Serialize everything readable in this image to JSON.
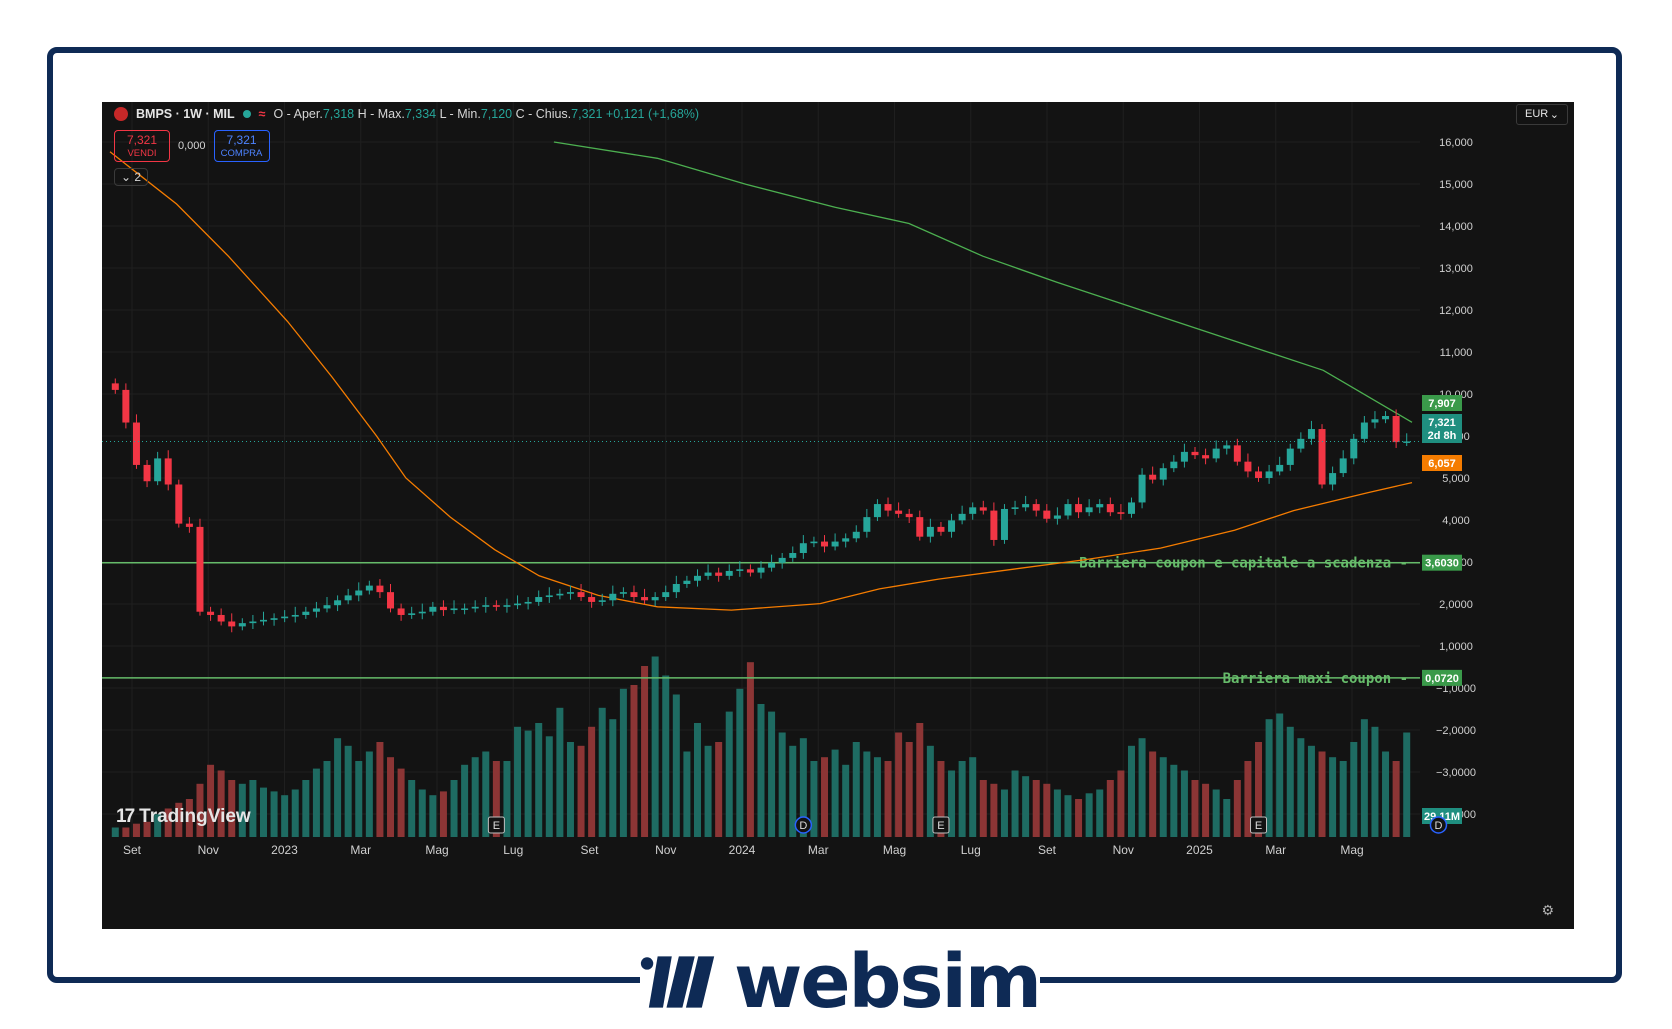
{
  "header": {
    "symbol": "BMPS · 1W · MIL",
    "o_label": "O - Aper.",
    "o_val": "7,318",
    "h_label": "H - Max.",
    "h_val": "7,334",
    "l_label": "L - Min.",
    "l_val": "7,120",
    "c_label": "C - Chius.",
    "c_val": "7,321",
    "change": "+0,121 (+1,68%)"
  },
  "trade": {
    "sell_price": "7,321",
    "sell_label": "VENDI",
    "spread": "0,000",
    "buy_price": "7,321",
    "buy_label": "COMPRA"
  },
  "indicators_toggle": "2",
  "currency": "EUR",
  "logo_text": "TradingView",
  "brand_text": "websim",
  "colors": {
    "up": "#26a69a",
    "down": "#f23645",
    "ma_slow": "#4caf50",
    "ma_fast": "#f57c00",
    "barrier": "#66bb6a",
    "frame": "#0e2a55"
  },
  "chart_data": {
    "type": "candlestick",
    "interval": "1W",
    "x_tick_labels": [
      "Set",
      "Nov",
      "2023",
      "Mar",
      "Mag",
      "Lug",
      "Set",
      "Nov",
      "2024",
      "Mar",
      "Mag",
      "Lug",
      "Set",
      "Nov",
      "2025",
      "Mar",
      "Mag"
    ],
    "y_tick_labels": [
      "16,000",
      "15,000",
      "14,000",
      "13,000",
      "12,000",
      "11,000",
      "10,000",
      "9,000",
      "5,000",
      "4,000",
      "3,0000",
      "2,0000",
      "1,0000",
      "−1,0000",
      "−2,0000",
      "−3,0000",
      "−4,0000"
    ],
    "ylim": [
      -4.5,
      16.5
    ],
    "price_labels": {
      "ma_slow": "7,907",
      "last": "7,321",
      "countdown": "2d 8h",
      "ma_fast": "6,057",
      "volume": "29,11M"
    },
    "hlines": [
      {
        "label": "Barriera coupon e capitale a scadenza",
        "value": 3.603,
        "value_label": "3,6030"
      },
      {
        "label": "Barriera maxi coupon",
        "value": 0.072,
        "value_label": "0,0720"
      }
    ],
    "event_markers": [
      {
        "type": "E",
        "x_index": 36
      },
      {
        "type": "D",
        "x_index": 65
      },
      {
        "type": "E",
        "x_index": 78
      },
      {
        "type": "E",
        "x_index": 108
      },
      {
        "type": "D",
        "x_index": 125
      }
    ],
    "close": [
      8.9,
      7.9,
      6.6,
      6.1,
      6.8,
      6.0,
      4.8,
      4.7,
      2.1,
      2.0,
      1.8,
      1.65,
      1.75,
      1.8,
      1.85,
      1.9,
      1.95,
      2.0,
      2.1,
      2.2,
      2.3,
      2.45,
      2.6,
      2.75,
      2.9,
      2.7,
      2.2,
      2.0,
      2.05,
      2.1,
      2.25,
      2.15,
      2.2,
      2.2,
      2.25,
      2.3,
      2.25,
      2.3,
      2.35,
      2.4,
      2.55,
      2.6,
      2.65,
      2.7,
      2.55,
      2.4,
      2.45,
      2.65,
      2.7,
      2.55,
      2.45,
      2.55,
      2.7,
      2.95,
      3.05,
      3.2,
      3.3,
      3.2,
      3.35,
      3.4,
      3.3,
      3.45,
      3.6,
      3.75,
      3.9,
      4.2,
      4.25,
      4.1,
      4.25,
      4.35,
      4.55,
      5.0,
      5.4,
      5.2,
      5.1,
      5.0,
      4.4,
      4.7,
      4.55,
      4.9,
      5.1,
      5.3,
      5.2,
      4.3,
      5.25,
      5.3,
      5.4,
      5.2,
      4.95,
      5.05,
      5.4,
      5.15,
      5.3,
      5.4,
      5.15,
      5.1,
      5.45,
      6.3,
      6.15,
      6.5,
      6.7,
      7.0,
      6.9,
      6.8,
      7.1,
      7.2,
      6.7,
      6.4,
      6.2,
      6.4,
      6.6,
      7.1,
      7.4,
      7.7,
      6.0,
      6.35,
      6.8,
      7.4,
      7.9,
      8.0,
      8.1,
      7.3,
      7.32
    ],
    "volume_rel": [
      0.05,
      0.05,
      0.07,
      0.08,
      0.12,
      0.15,
      0.18,
      0.2,
      0.28,
      0.38,
      0.35,
      0.3,
      0.28,
      0.3,
      0.26,
      0.24,
      0.22,
      0.25,
      0.3,
      0.36,
      0.4,
      0.52,
      0.48,
      0.4,
      0.45,
      0.5,
      0.42,
      0.36,
      0.3,
      0.25,
      0.22,
      0.24,
      0.3,
      0.38,
      0.42,
      0.45,
      0.4,
      0.4,
      0.58,
      0.56,
      0.6,
      0.53,
      0.68,
      0.5,
      0.48,
      0.58,
      0.68,
      0.62,
      0.78,
      0.8,
      0.9,
      0.95,
      0.85,
      0.75,
      0.45,
      0.6,
      0.48,
      0.5,
      0.66,
      0.78,
      0.92,
      0.7,
      0.66,
      0.55,
      0.48,
      0.52,
      0.4,
      0.42,
      0.46,
      0.38,
      0.5,
      0.45,
      0.42,
      0.4,
      0.55,
      0.5,
      0.6,
      0.48,
      0.4,
      0.35,
      0.4,
      0.42,
      0.3,
      0.28,
      0.25,
      0.35,
      0.32,
      0.3,
      0.28,
      0.25,
      0.22,
      0.2,
      0.23,
      0.25,
      0.3,
      0.35,
      0.48,
      0.52,
      0.45,
      0.42,
      0.38,
      0.35,
      0.3,
      0.28,
      0.25,
      0.2,
      0.3,
      0.4,
      0.5,
      0.62,
      0.65,
      0.58,
      0.52,
      0.48,
      0.45,
      0.42,
      0.4,
      0.5,
      0.62,
      0.58,
      0.45,
      0.4,
      0.55
    ],
    "ma_fast": [
      {
        "x": 0,
        "y": 16.2
      },
      {
        "x": 9,
        "y": 14.6
      },
      {
        "x": 16,
        "y": 13.0
      },
      {
        "x": 24,
        "y": 11.0
      },
      {
        "x": 30,
        "y": 9.3
      },
      {
        "x": 36,
        "y": 7.5
      },
      {
        "x": 40,
        "y": 6.2
      },
      {
        "x": 46,
        "y": 5.0
      },
      {
        "x": 52,
        "y": 4.0
      },
      {
        "x": 58,
        "y": 3.2
      },
      {
        "x": 66,
        "y": 2.6
      },
      {
        "x": 74,
        "y": 2.25
      },
      {
        "x": 84,
        "y": 2.15
      },
      {
        "x": 96,
        "y": 2.35
      },
      {
        "x": 104,
        "y": 2.8
      },
      {
        "x": 112,
        "y": 3.1
      },
      {
        "x": 122,
        "y": 3.4
      },
      {
        "x": 132,
        "y": 3.7
      },
      {
        "x": 142,
        "y": 4.05
      },
      {
        "x": 152,
        "y": 4.6
      },
      {
        "x": 160,
        "y": 5.2
      },
      {
        "x": 170,
        "y": 5.75
      },
      {
        "x": 176,
        "y": 6.057
      }
    ],
    "ma_slow": [
      {
        "x": 60,
        "y": 16.5
      },
      {
        "x": 74,
        "y": 16.0
      },
      {
        "x": 86,
        "y": 15.2
      },
      {
        "x": 98,
        "y": 14.5
      },
      {
        "x": 108,
        "y": 14.0
      },
      {
        "x": 118,
        "y": 13.0
      },
      {
        "x": 128,
        "y": 12.2
      },
      {
        "x": 140,
        "y": 11.3
      },
      {
        "x": 152,
        "y": 10.4
      },
      {
        "x": 164,
        "y": 9.5
      },
      {
        "x": 176,
        "y": 7.907
      }
    ]
  }
}
